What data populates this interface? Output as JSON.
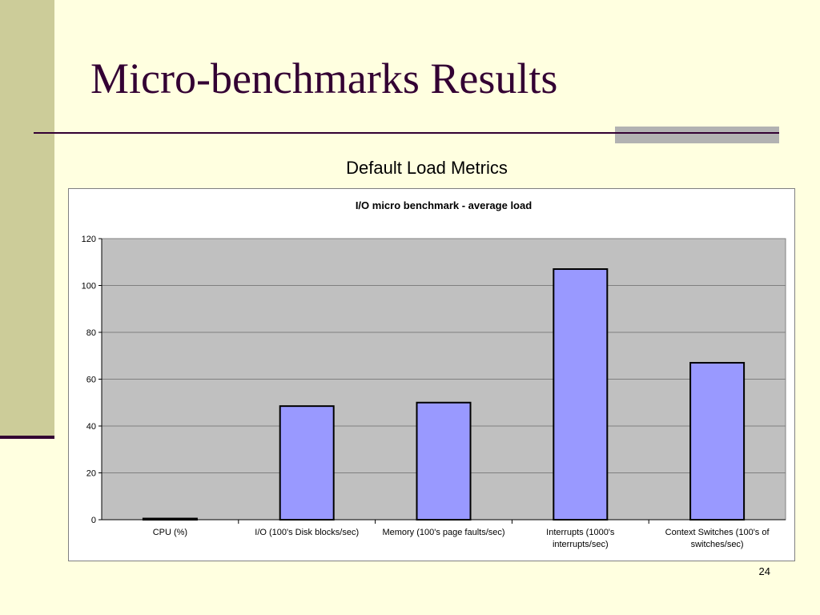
{
  "slide": {
    "title": "Micro-benchmarks Results",
    "subtitle": "Default Load Metrics",
    "page_number": "24"
  },
  "colors": {
    "background": "#FFFFE0",
    "side_band": "#CCCC99",
    "accent_dark": "#330033",
    "plot_area": "#C0C0C0",
    "bar_fill": "#9999FF",
    "bar_stroke": "#000000"
  },
  "chart_data": {
    "type": "bar",
    "title": "I/O micro benchmark - average load",
    "categories": [
      [
        "CPU (%)"
      ],
      [
        "I/O (100's Disk blocks/sec)"
      ],
      [
        "Memory (100's page faults/sec)"
      ],
      [
        "Interrupts (1000's",
        "interrupts/sec)"
      ],
      [
        "Context Switches (100's of",
        "switches/sec)"
      ]
    ],
    "values": [
      0.5,
      48.5,
      50,
      107,
      67
    ],
    "ylim": [
      0,
      120
    ],
    "yticks": [
      0,
      20,
      40,
      60,
      80,
      100,
      120
    ],
    "xlabel": "",
    "ylabel": "",
    "grid": true,
    "legend": "none"
  }
}
